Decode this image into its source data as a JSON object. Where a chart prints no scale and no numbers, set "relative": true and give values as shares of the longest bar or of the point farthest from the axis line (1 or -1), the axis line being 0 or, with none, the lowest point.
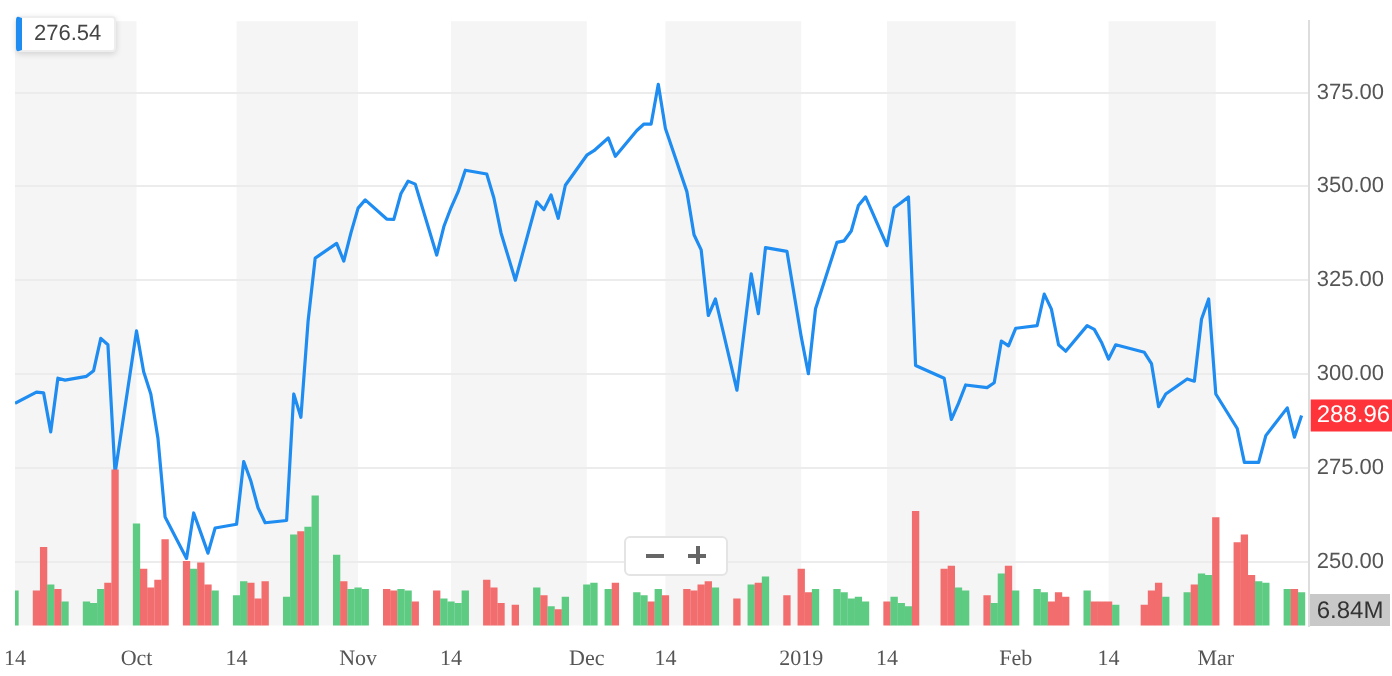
{
  "chart_data": [
    {
      "type": "line",
      "annotations": [
        "276.54"
      ],
      "xlim": [
        "2018-09-14",
        "2019-03-14"
      ],
      "xticks": [
        {
          "value": "2018-09-14",
          "label": "14"
        },
        {
          "value": "2018-10-01",
          "label": "Oct"
        },
        {
          "value": "2018-10-15",
          "label": "14"
        },
        {
          "value": "2018-11-01",
          "label": "Nov"
        },
        {
          "value": "2018-11-14",
          "label": "14"
        },
        {
          "value": "2018-12-03",
          "label": "Dec"
        },
        {
          "value": "2018-12-14",
          "label": "14"
        },
        {
          "value": "2019-01-02",
          "label": "2019"
        },
        {
          "value": "2019-01-14",
          "label": "14"
        },
        {
          "value": "2019-02-01",
          "label": "Feb"
        },
        {
          "value": "2019-02-14",
          "label": "14"
        },
        {
          "value": "2019-03-01",
          "label": "Mar"
        }
      ],
      "ylim": [
        233,
        394
      ],
      "yticks": [
        {
          "value": 250,
          "label": "250.00"
        },
        {
          "value": 275,
          "label": "275.00"
        },
        {
          "value": 300,
          "label": "300.00"
        },
        {
          "value": 325,
          "label": "325.00"
        },
        {
          "value": 350,
          "label": "350.00"
        },
        {
          "value": 375,
          "label": "375.00"
        }
      ],
      "grid": "y",
      "legend": false,
      "marker": "none",
      "line_style": "solid",
      "bands": [
        {
          "axis": "x",
          "from": "2018-09-14",
          "to": "2018-10-01",
          "color": "#f5f5f5"
        },
        {
          "axis": "x",
          "from": "2018-10-15",
          "to": "2018-11-01",
          "color": "#f5f5f5"
        },
        {
          "axis": "x",
          "from": "2018-11-14",
          "to": "2018-12-03",
          "color": "#f5f5f5"
        },
        {
          "axis": "x",
          "from": "2018-12-14",
          "to": "2019-01-02",
          "color": "#f5f5f5"
        },
        {
          "axis": "x",
          "from": "2019-01-14",
          "to": "2019-02-01",
          "color": "#f5f5f5"
        },
        {
          "axis": "x",
          "from": "2019-02-14",
          "to": "2019-03-01",
          "color": "#f5f5f5"
        }
      ],
      "x": [
        "2018-09-14",
        "2018-09-17",
        "2018-09-18",
        "2018-09-19",
        "2018-09-20",
        "2018-09-21",
        "2018-09-24",
        "2018-09-25",
        "2018-09-26",
        "2018-09-27",
        "2018-09-28",
        "2018-10-01",
        "2018-10-02",
        "2018-10-03",
        "2018-10-04",
        "2018-10-05",
        "2018-10-08",
        "2018-10-09",
        "2018-10-10",
        "2018-10-11",
        "2018-10-12",
        "2018-10-15",
        "2018-10-16",
        "2018-10-17",
        "2018-10-18",
        "2018-10-19",
        "2018-10-22",
        "2018-10-23",
        "2018-10-24",
        "2018-10-25",
        "2018-10-26",
        "2018-10-29",
        "2018-10-30",
        "2018-10-31",
        "2018-11-01",
        "2018-11-02",
        "2018-11-05",
        "2018-11-06",
        "2018-11-07",
        "2018-11-08",
        "2018-11-09",
        "2018-11-12",
        "2018-11-13",
        "2018-11-14",
        "2018-11-15",
        "2018-11-16",
        "2018-11-19",
        "2018-11-20",
        "2018-11-21",
        "2018-11-23",
        "2018-11-26",
        "2018-11-27",
        "2018-11-28",
        "2018-11-29",
        "2018-11-30",
        "2018-12-03",
        "2018-12-04",
        "2018-12-06",
        "2018-12-07",
        "2018-12-10",
        "2018-12-11",
        "2018-12-12",
        "2018-12-13",
        "2018-12-14",
        "2018-12-17",
        "2018-12-18",
        "2018-12-19",
        "2018-12-20",
        "2018-12-21",
        "2018-12-24",
        "2018-12-26",
        "2018-12-27",
        "2018-12-28",
        "2018-12-31",
        "2019-01-02",
        "2019-01-03",
        "2019-01-04",
        "2019-01-07",
        "2019-01-08",
        "2019-01-09",
        "2019-01-10",
        "2019-01-11",
        "2019-01-14",
        "2019-01-15",
        "2019-01-16",
        "2019-01-17",
        "2019-01-18",
        "2019-01-22",
        "2019-01-23",
        "2019-01-24",
        "2019-01-25",
        "2019-01-28",
        "2019-01-29",
        "2019-01-30",
        "2019-01-31",
        "2019-02-01",
        "2019-02-04",
        "2019-02-05",
        "2019-02-06",
        "2019-02-07",
        "2019-02-08",
        "2019-02-11",
        "2019-02-12",
        "2019-02-13",
        "2019-02-14",
        "2019-02-15",
        "2019-02-19",
        "2019-02-20",
        "2019-02-21",
        "2019-02-22",
        "2019-02-25",
        "2019-02-26",
        "2019-02-27",
        "2019-02-28",
        "2019-03-01",
        "2019-03-04",
        "2019-03-05",
        "2019-03-06",
        "2019-03-07",
        "2019-03-08",
        "2019-03-11",
        "2019-03-12",
        "2019-03-13"
      ],
      "series": [
        {
          "color": "#1e8cf0",
          "values": [
            292.2,
            295.2,
            295.0,
            284.6,
            298.9,
            298.4,
            299.4,
            300.9,
            309.5,
            307.8,
            273.6,
            311.5,
            300.6,
            294.7,
            282.9,
            261.9,
            250.9,
            263.0,
            257.7,
            252.3,
            259.0,
            260.0,
            276.7,
            271.5,
            264.4,
            260.4,
            261.0,
            294.7,
            288.5,
            314.0,
            330.9,
            334.8,
            330.1,
            337.6,
            344.2,
            346.4,
            341.3,
            341.2,
            348.1,
            351.4,
            350.6,
            331.7,
            339.3,
            344.3,
            348.6,
            354.3,
            353.3,
            346.9,
            337.6,
            325.0,
            345.9,
            343.8,
            347.7,
            341.5,
            350.3,
            358.3,
            359.5,
            362.9,
            358.0,
            364.9,
            366.6,
            366.6,
            377.2,
            365.4,
            348.6,
            337.1,
            333.1,
            315.6,
            320.0,
            295.7,
            326.7,
            316.1,
            333.7,
            332.7,
            309.9,
            300.1,
            317.4,
            335.1,
            335.5,
            338.1,
            344.9,
            347.2,
            334.2,
            344.3,
            345.7,
            347.2,
            302.3,
            298.9,
            287.9,
            292.2,
            297.1,
            296.4,
            297.7,
            308.8,
            307.5,
            312.2,
            312.9,
            321.3,
            317.3,
            307.8,
            306.1,
            312.9,
            311.9,
            308.5,
            304.0,
            307.8,
            305.8,
            302.8,
            291.3,
            294.7,
            298.7,
            298.1,
            314.6,
            320.0,
            294.7,
            285.5,
            276.5,
            276.5,
            276.5,
            283.6,
            291.0,
            283.2,
            288.96
          ],
          "value_labels": [
            null,
            null,
            null,
            null,
            null,
            null,
            null,
            null,
            null,
            null,
            null,
            null,
            null,
            null,
            null,
            null,
            null,
            null,
            null,
            null,
            null,
            null,
            null,
            null,
            null,
            null,
            null,
            null,
            null,
            null,
            null,
            null,
            null,
            null,
            null,
            null,
            null,
            null,
            null,
            null,
            null,
            null,
            null,
            null,
            null,
            null,
            null,
            null,
            null,
            null,
            null,
            null,
            null,
            null,
            null,
            null,
            null,
            null,
            null,
            null,
            null,
            null,
            null,
            null,
            null,
            null,
            null,
            null,
            null,
            null,
            null,
            null,
            null,
            null,
            null,
            null,
            null,
            null,
            null,
            null,
            null,
            null,
            null,
            null,
            null,
            null,
            null,
            null,
            null,
            null,
            null,
            null,
            null,
            null,
            null,
            null,
            null,
            null,
            null,
            null,
            null,
            null,
            null,
            null,
            null,
            null,
            null,
            null,
            null,
            null,
            null,
            null,
            null,
            null,
            null,
            null,
            null,
            null,
            null,
            null,
            null,
            null,
            "288.96"
          ]
        }
      ]
    },
    {
      "type": "bar",
      "relative": true,
      "tick_labels": false,
      "legend": false,
      "xlim": [
        "2018-09-14",
        "2019-03-14"
      ],
      "annotations": [
        "6.84M"
      ],
      "x": [
        "2018-09-14",
        "2018-09-17",
        "2018-09-18",
        "2018-09-19",
        "2018-09-20",
        "2018-09-21",
        "2018-09-24",
        "2018-09-25",
        "2018-09-26",
        "2018-09-27",
        "2018-09-28",
        "2018-10-01",
        "2018-10-02",
        "2018-10-03",
        "2018-10-04",
        "2018-10-05",
        "2018-10-08",
        "2018-10-09",
        "2018-10-10",
        "2018-10-11",
        "2018-10-12",
        "2018-10-15",
        "2018-10-16",
        "2018-10-17",
        "2018-10-18",
        "2018-10-19",
        "2018-10-22",
        "2018-10-23",
        "2018-10-24",
        "2018-10-25",
        "2018-10-26",
        "2018-10-29",
        "2018-10-30",
        "2018-10-31",
        "2018-11-01",
        "2018-11-02",
        "2018-11-05",
        "2018-11-06",
        "2018-11-07",
        "2018-11-08",
        "2018-11-09",
        "2018-11-12",
        "2018-11-13",
        "2018-11-14",
        "2018-11-15",
        "2018-11-16",
        "2018-11-19",
        "2018-11-20",
        "2018-11-21",
        "2018-11-23",
        "2018-11-26",
        "2018-11-27",
        "2018-11-28",
        "2018-11-29",
        "2018-11-30",
        "2018-12-03",
        "2018-12-04",
        "2018-12-06",
        "2018-12-07",
        "2018-12-10",
        "2018-12-11",
        "2018-12-12",
        "2018-12-13",
        "2018-12-14",
        "2018-12-17",
        "2018-12-18",
        "2018-12-19",
        "2018-12-20",
        "2018-12-21",
        "2018-12-24",
        "2018-12-26",
        "2018-12-27",
        "2018-12-28",
        "2018-12-31",
        "2019-01-02",
        "2019-01-03",
        "2019-01-04",
        "2019-01-07",
        "2019-01-08",
        "2019-01-09",
        "2019-01-10",
        "2019-01-11",
        "2019-01-14",
        "2019-01-15",
        "2019-01-16",
        "2019-01-17",
        "2019-01-18",
        "2019-01-22",
        "2019-01-23",
        "2019-01-24",
        "2019-01-25",
        "2019-01-28",
        "2019-01-29",
        "2019-01-30",
        "2019-01-31",
        "2019-02-01",
        "2019-02-04",
        "2019-02-05",
        "2019-02-06",
        "2019-02-07",
        "2019-02-08",
        "2019-02-11",
        "2019-02-12",
        "2019-02-13",
        "2019-02-14",
        "2019-02-15",
        "2019-02-19",
        "2019-02-20",
        "2019-02-21",
        "2019-02-22",
        "2019-02-25",
        "2019-02-26",
        "2019-02-27",
        "2019-02-28",
        "2019-03-01",
        "2019-03-04",
        "2019-03-05",
        "2019-03-06",
        "2019-03-07",
        "2019-03-08",
        "2019-03-11",
        "2019-03-12",
        "2019-03-13"
      ],
      "series": [
        {
          "values": [
            0.22,
            0.22,
            0.5,
            0.26,
            0.23,
            0.15,
            0.15,
            0.14,
            0.23,
            0.27,
            1,
            0.65,
            0.36,
            0.24,
            0.29,
            0.55,
            0.41,
            0.36,
            0.4,
            0.26,
            0.22,
            0.19,
            0.28,
            0.27,
            0.17,
            0.28,
            0.18,
            0.58,
            0.6,
            0.63,
            0.83,
            0.45,
            0.28,
            0.23,
            0.24,
            0.23,
            0.23,
            0.22,
            0.23,
            0.22,
            0.15,
            0.22,
            0.17,
            0.15,
            0.14,
            0.22,
            0.29,
            0.24,
            0.14,
            0.13,
            0.24,
            0.19,
            0.12,
            0.1,
            0.18,
            0.26,
            0.27,
            0.23,
            0.27,
            0.21,
            0.19,
            0.15,
            0.23,
            0.19,
            0.23,
            0.22,
            0.26,
            0.28,
            0.24,
            0.17,
            0.26,
            0.27,
            0.31,
            0.19,
            0.36,
            0.21,
            0.23,
            0.23,
            0.21,
            0.17,
            0.18,
            0.15,
            0.15,
            0.18,
            0.14,
            0.12,
            0.73,
            0.36,
            0.38,
            0.24,
            0.22,
            0.19,
            0.14,
            0.33,
            0.38,
            0.22,
            0.23,
            0.21,
            0.15,
            0.21,
            0.18,
            0.22,
            0.15,
            0.15,
            0.15,
            0.13,
            0.13,
            0.22,
            0.27,
            0.18,
            0.21,
            0.26,
            0.33,
            0.32,
            0.69,
            0.53,
            0.58,
            0.32,
            0.28,
            0.27,
            0.23,
            0.23,
            0.21
          ],
          "colors": [
            "#5ecb83",
            "#f26d6d",
            "#f26d6d",
            "#5ecb83",
            "#f26d6d",
            "#5ecb83",
            "#5ecb83",
            "#5ecb83",
            "#5ecb83",
            "#f26d6d",
            "#f26d6d",
            "#5ecb83",
            "#f26d6d",
            "#f26d6d",
            "#f26d6d",
            "#f26d6d",
            "#f26d6d",
            "#5ecb83",
            "#f26d6d",
            "#f26d6d",
            "#5ecb83",
            "#5ecb83",
            "#5ecb83",
            "#f26d6d",
            "#f26d6d",
            "#f26d6d",
            "#5ecb83",
            "#5ecb83",
            "#f26d6d",
            "#5ecb83",
            "#5ecb83",
            "#5ecb83",
            "#f26d6d",
            "#5ecb83",
            "#5ecb83",
            "#5ecb83",
            "#f26d6d",
            "#f26d6d",
            "#5ecb83",
            "#5ecb83",
            "#f26d6d",
            "#f26d6d",
            "#5ecb83",
            "#5ecb83",
            "#5ecb83",
            "#5ecb83",
            "#f26d6d",
            "#f26d6d",
            "#f26d6d",
            "#f26d6d",
            "#5ecb83",
            "#f26d6d",
            "#5ecb83",
            "#f26d6d",
            "#5ecb83",
            "#5ecb83",
            "#5ecb83",
            "#5ecb83",
            "#f26d6d",
            "#5ecb83",
            "#5ecb83",
            "#f26d6d",
            "#5ecb83",
            "#f26d6d",
            "#f26d6d",
            "#f26d6d",
            "#f26d6d",
            "#f26d6d",
            "#5ecb83",
            "#f26d6d",
            "#5ecb83",
            "#f26d6d",
            "#5ecb83",
            "#f26d6d",
            "#f26d6d",
            "#f26d6d",
            "#5ecb83",
            "#5ecb83",
            "#5ecb83",
            "#5ecb83",
            "#5ecb83",
            "#5ecb83",
            "#f26d6d",
            "#5ecb83",
            "#5ecb83",
            "#5ecb83",
            "#f26d6d",
            "#f26d6d",
            "#f26d6d",
            "#5ecb83",
            "#5ecb83",
            "#f26d6d",
            "#5ecb83",
            "#5ecb83",
            "#f26d6d",
            "#5ecb83",
            "#5ecb83",
            "#5ecb83",
            "#f26d6d",
            "#f26d6d",
            "#f26d6d",
            "#5ecb83",
            "#f26d6d",
            "#f26d6d",
            "#f26d6d",
            "#5ecb83",
            "#f26d6d",
            "#f26d6d",
            "#f26d6d",
            "#5ecb83",
            "#5ecb83",
            "#f26d6d",
            "#5ecb83",
            "#5ecb83",
            "#f26d6d",
            "#f26d6d",
            "#f26d6d",
            "#f26d6d",
            "#5ecb83",
            "#5ecb83",
            "#5ecb83",
            "#f26d6d",
            "#5ecb83"
          ]
        }
      ]
    }
  ]
}
